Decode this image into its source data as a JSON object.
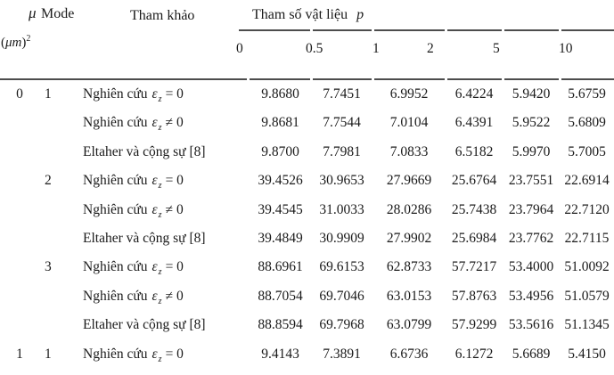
{
  "page": {
    "background": "#ffffff",
    "text_color": "#1a1a1a",
    "rule_color": "#4d4d4d"
  },
  "header": {
    "mu_symbol": "μ",
    "mu_unit_open": "(",
    "mu_unit": "μm",
    "mu_unit_close": ")",
    "mu_unit_sup": "2",
    "mode_label": "Mode",
    "ref_label": "Tham khảo",
    "group_label": "Tham số vật liệu",
    "group_var": "p",
    "p_values": [
      "0",
      "0.5",
      "1",
      "2",
      "5",
      "10"
    ]
  },
  "refs": {
    "eq": {
      "prefix": "Nghiên cứu",
      "symbol": "ε",
      "sub": "z",
      "op": "= 0"
    },
    "ne": {
      "prefix": "Nghiên cứu",
      "symbol": "ε",
      "sub": "z",
      "op": "≠ 0"
    },
    "eltaher": {
      "prefix": "Eltaher và cộng sự [8]"
    }
  },
  "rows": [
    {
      "mu": "0",
      "mode": "1",
      "ref": "eq",
      "values": [
        "9.8680",
        "7.7451",
        "6.9952",
        "6.4224",
        "5.9420",
        "5.6759"
      ]
    },
    {
      "mu": "",
      "mode": "",
      "ref": "ne",
      "values": [
        "9.8681",
        "7.7544",
        "7.0104",
        "6.4391",
        "5.9522",
        "5.6809"
      ]
    },
    {
      "mu": "",
      "mode": "",
      "ref": "eltaher",
      "values": [
        "9.8700",
        "7.7981",
        "7.0833",
        "6.5182",
        "5.9970",
        "5.7005"
      ]
    },
    {
      "mu": "",
      "mode": "2",
      "ref": "eq",
      "values": [
        "39.4526",
        "30.9653",
        "27.9669",
        "25.6764",
        "23.7551",
        "22.6914"
      ]
    },
    {
      "mu": "",
      "mode": "",
      "ref": "ne",
      "values": [
        "39.4545",
        "31.0033",
        "28.0286",
        "25.7438",
        "23.7964",
        "22.7120"
      ]
    },
    {
      "mu": "",
      "mode": "",
      "ref": "eltaher",
      "values": [
        "39.4849",
        "30.9909",
        "27.9902",
        "25.6984",
        "23.7762",
        "22.7115"
      ]
    },
    {
      "mu": "",
      "mode": "3",
      "ref": "eq",
      "values": [
        "88.6961",
        "69.6153",
        "62.8733",
        "57.7217",
        "53.4000",
        "51.0092"
      ]
    },
    {
      "mu": "",
      "mode": "",
      "ref": "ne",
      "values": [
        "88.7054",
        "69.7046",
        "63.0153",
        "57.8763",
        "53.4956",
        "51.0579"
      ]
    },
    {
      "mu": "",
      "mode": "",
      "ref": "eltaher",
      "values": [
        "88.8594",
        "69.7968",
        "63.0799",
        "57.9299",
        "53.5616",
        "51.1345"
      ]
    },
    {
      "mu": "1",
      "mode": "1",
      "ref": "eq",
      "values": [
        "9.4143",
        "7.3891",
        "6.6736",
        "6.1272",
        "5.6689",
        "5.4150"
      ]
    }
  ]
}
